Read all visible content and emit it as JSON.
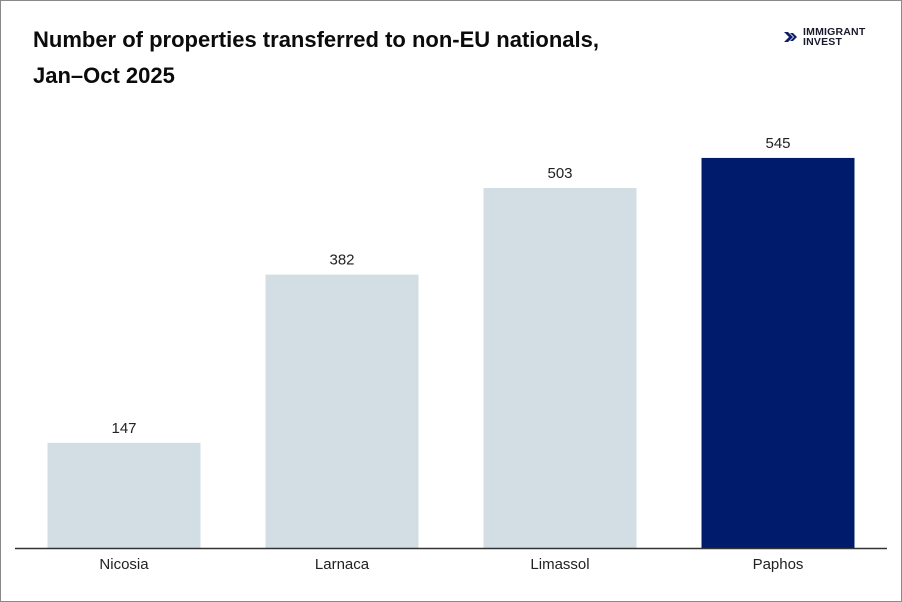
{
  "chart_data": {
    "type": "bar",
    "title": "Number of properties transferred to non-EU nationals, Jan–Oct 2025",
    "title_lines": [
      "Number of properties transferred to non-EU nationals,",
      "Jan–Oct 2025"
    ],
    "categories": [
      "Nicosia",
      "Larnaca",
      "Limassol",
      "Paphos"
    ],
    "values": [
      147,
      382,
      503,
      545
    ],
    "highlight": "Paphos",
    "colors": {
      "default": "#d3dee4",
      "highlight": "#001b6b"
    },
    "xlabel": "",
    "ylabel": "",
    "ylim": [
      0,
      700
    ],
    "grid": false,
    "data_labels": true
  },
  "logo": {
    "line1": "IMMIGRANT",
    "line2": "INVEST",
    "color": "#0d1f6b"
  }
}
